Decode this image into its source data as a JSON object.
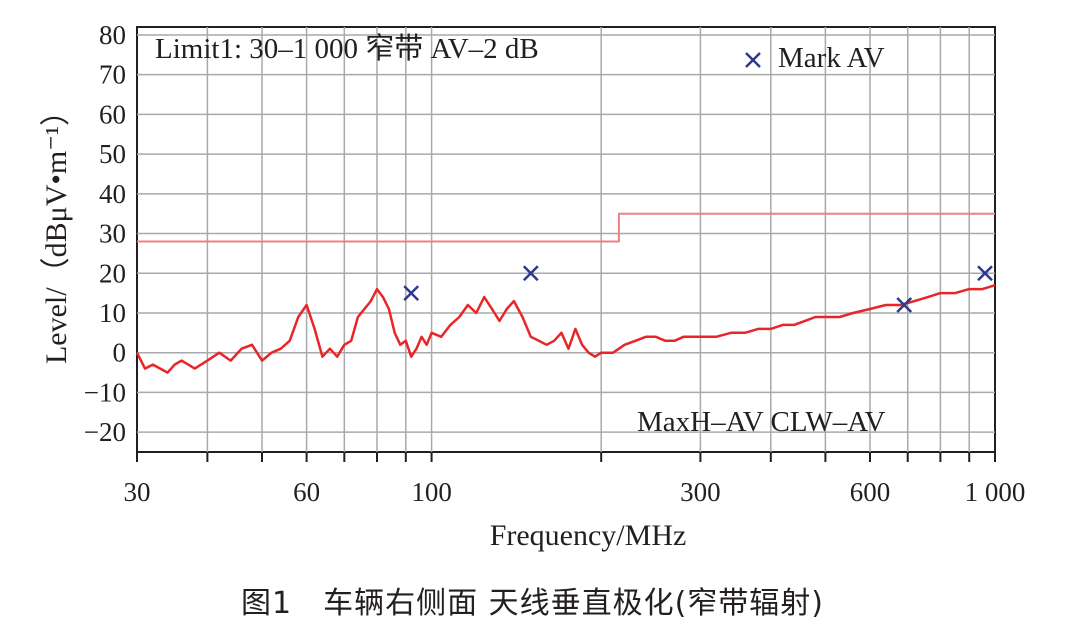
{
  "caption": "图1　车辆右侧面 天线垂直极化(窄带辐射)",
  "chart_data": {
    "type": "line",
    "xlabel": "Frequency/MHz",
    "ylabel": "Level/（dBμV•m⁻¹）",
    "x_scale": "log",
    "xlim": [
      30,
      1000
    ],
    "ylim": [
      -25,
      82
    ],
    "x_ticks": [
      30,
      60,
      100,
      300,
      600,
      1000
    ],
    "x_tick_labels": [
      "30",
      "60",
      "100",
      "300",
      "600",
      "1 000"
    ],
    "x_minor_ticks": [
      40,
      50,
      70,
      80,
      90,
      200,
      400,
      500,
      700,
      800,
      900
    ],
    "y_ticks": [
      80,
      70,
      60,
      50,
      40,
      30,
      20,
      10,
      0,
      -10,
      -20
    ],
    "y_tick_labels": [
      "80",
      "70",
      "60",
      "50",
      "40",
      "30",
      "20",
      "10",
      "0",
      "−10",
      "−20"
    ],
    "grid": true,
    "annotations": {
      "limit": "Limit1: 30–1 000 窄带 AV–2 dB",
      "legend_mark": "Mark AV",
      "bottom_right": "MaxH–AV   CLW–AV"
    },
    "colors": {
      "trace": "#e8262a",
      "limit": "#f08080",
      "marker": "#2b3a8c",
      "grid": "#a7a9ac"
    },
    "series": [
      {
        "name": "Limit1",
        "style": "limit",
        "x": [
          30,
          215,
          215,
          1000
        ],
        "y": [
          28,
          28,
          35,
          35
        ]
      },
      {
        "name": "MaxH–AV",
        "style": "trace",
        "x": [
          30,
          31,
          32,
          33,
          34,
          35,
          36,
          38,
          40,
          42,
          44,
          46,
          48,
          50,
          52,
          54,
          56,
          58,
          60,
          62,
          64,
          66,
          68,
          70,
          72,
          74,
          76,
          78,
          80,
          82,
          84,
          86,
          88,
          90,
          92,
          94,
          96,
          98,
          100,
          104,
          108,
          112,
          116,
          120,
          124,
          128,
          132,
          136,
          140,
          145,
          150,
          155,
          160,
          165,
          170,
          175,
          180,
          185,
          190,
          195,
          200,
          205,
          210,
          215,
          220,
          230,
          240,
          250,
          260,
          270,
          280,
          290,
          300,
          320,
          340,
          360,
          380,
          400,
          420,
          440,
          460,
          480,
          500,
          530,
          560,
          600,
          640,
          680,
          720,
          760,
          800,
          850,
          900,
          950,
          1000
        ],
        "y": [
          0,
          -4,
          -3,
          -4,
          -5,
          -3,
          -2,
          -4,
          -2,
          0,
          -2,
          1,
          2,
          -2,
          0,
          1,
          3,
          9,
          12,
          6,
          -1,
          1,
          -1,
          2,
          3,
          9,
          11,
          13,
          16,
          14,
          11,
          5,
          2,
          3,
          -1,
          1,
          4,
          2,
          5,
          4,
          7,
          9,
          12,
          10,
          14,
          11,
          8,
          11,
          13,
          9,
          4,
          3,
          2,
          3,
          5,
          1,
          6,
          2,
          0,
          -1,
          0,
          0,
          0,
          1,
          2,
          3,
          4,
          4,
          3,
          3,
          4,
          4,
          4,
          4,
          5,
          5,
          6,
          6,
          7,
          7,
          8,
          9,
          9,
          9,
          10,
          11,
          12,
          12,
          13,
          14,
          15,
          15,
          16,
          16,
          17
        ]
      },
      {
        "name": "Mark AV",
        "style": "marker",
        "x": [
          92,
          150,
          690,
          960
        ],
        "y": [
          15,
          20,
          12,
          20
        ]
      }
    ]
  }
}
